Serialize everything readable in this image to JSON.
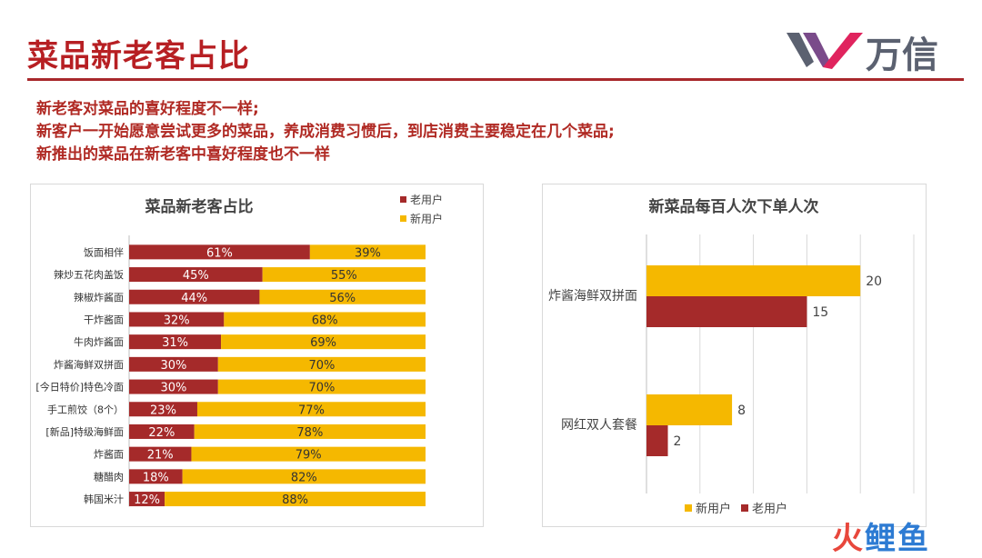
{
  "header": {
    "title": "菜品新老客占比",
    "brand": "万信"
  },
  "summary": {
    "line1": "新老客对菜品的喜好程度不一样;",
    "line2": "新客户一开始愿意尝试更多的菜品，养成消费习惯后，到店消费主要稳定在几个菜品;",
    "line3": "新推出的菜品在新老客中喜好程度也不一样"
  },
  "watermark": {
    "part1": "火",
    "part2": "鲤鱼"
  },
  "colors": {
    "old": "#a52a2a",
    "new": "#f5b800",
    "accent": "#b71f23"
  },
  "chart_data": [
    {
      "type": "bar",
      "orientation": "horizontal",
      "stacked": "percent",
      "title": "菜品新老客占比",
      "categories": [
        "饭面相伴",
        "辣炒五花肉盖饭",
        "辣椒炸酱面",
        "干炸酱面",
        "牛肉炸酱面",
        "炸酱海鲜双拼面",
        "[今日特价]特色冷面",
        "手工煎饺（8个）",
        "[新品]特级海鲜面",
        "炸酱面",
        "糖醋肉",
        "韩国米汁"
      ],
      "series": [
        {
          "name": "老用户",
          "values": [
            61,
            45,
            44,
            32,
            31,
            30,
            30,
            23,
            22,
            21,
            18,
            12
          ]
        },
        {
          "name": "新用户",
          "values": [
            39,
            55,
            56,
            68,
            69,
            70,
            70,
            77,
            78,
            79,
            82,
            88
          ]
        }
      ],
      "legend": "top-right"
    },
    {
      "type": "bar",
      "orientation": "horizontal",
      "title": "新菜品每百人次下单人次",
      "categories": [
        "炸酱海鲜双拼面",
        "网红双人套餐"
      ],
      "series": [
        {
          "name": "新用户",
          "values": [
            20,
            8
          ]
        },
        {
          "name": "老用户",
          "values": [
            15,
            2
          ]
        }
      ],
      "xlim": [
        0,
        25
      ],
      "grid": true,
      "legend": "bottom"
    }
  ]
}
